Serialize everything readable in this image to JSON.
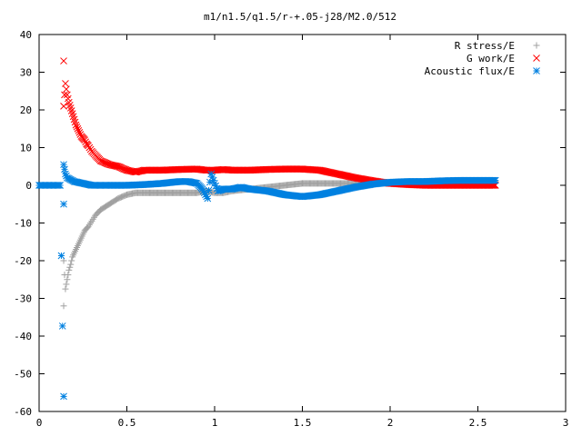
{
  "chart_data": {
    "type": "scatter",
    "title": "m1/n1.5/q1.5/r-+.05-j28/M2.0/512",
    "xlabel": "",
    "ylabel": "",
    "xlim": [
      0,
      3
    ],
    "ylim": [
      -60,
      40
    ],
    "xticks": [
      {
        "value": 0,
        "label": "0"
      },
      {
        "value": 0.5,
        "label": "0.5"
      },
      {
        "value": 1,
        "label": "1"
      },
      {
        "value": 1.5,
        "label": "1.5"
      },
      {
        "value": 2,
        "label": "2"
      },
      {
        "value": 2.5,
        "label": "2.5"
      },
      {
        "value": 3,
        "label": "3"
      }
    ],
    "yticks": [
      {
        "value": 40,
        "label": "40"
      },
      {
        "value": 30,
        "label": "30"
      },
      {
        "value": 20,
        "label": "20"
      },
      {
        "value": 10,
        "label": "10"
      },
      {
        "value": 0,
        "label": "0"
      },
      {
        "value": -10,
        "label": "-10"
      },
      {
        "value": -20,
        "label": "-20"
      },
      {
        "value": -30,
        "label": "-30"
      },
      {
        "value": -40,
        "label": "-40"
      },
      {
        "value": -50,
        "label": "-50"
      },
      {
        "value": -60,
        "label": "-60"
      }
    ],
    "grid": false,
    "legend_position": "top-right",
    "series": [
      {
        "name": "R stress/E",
        "marker": "plus",
        "color": "#a0a0a0",
        "x": [
          0.14,
          0.14,
          0.15,
          0.16,
          0.17,
          0.18,
          0.19,
          0.2,
          0.21,
          0.22,
          0.23,
          0.24,
          0.25,
          0.26,
          0.27,
          0.28,
          0.3,
          0.32,
          0.35,
          0.4,
          0.45,
          0.5,
          0.55,
          0.6,
          0.7,
          0.8,
          0.9,
          0.95,
          1.0,
          1.05,
          1.1,
          1.2,
          1.3,
          1.4,
          1.5,
          1.6,
          1.7,
          1.8,
          1.9,
          2.0,
          2.1,
          2.2,
          2.3,
          2.4,
          2.5,
          2.6
        ],
        "y": [
          -32,
          -20,
          -27.5,
          -25,
          -22.5,
          -21,
          -19,
          -18,
          -17,
          -16,
          -15,
          -14,
          -13,
          -12,
          -11.5,
          -11,
          -9.5,
          -8,
          -6.5,
          -5,
          -3.5,
          -2.5,
          -2,
          -2,
          -2,
          -2,
          -2,
          -1.5,
          -2,
          -2,
          -1.5,
          -1,
          -0.5,
          0,
          0.5,
          0.5,
          0.5,
          0.5,
          0.5,
          0.5,
          0.8,
          0.8,
          1,
          1,
          1,
          1
        ]
      },
      {
        "name": "G work/E",
        "marker": "cross",
        "color": "#ff0000",
        "x": [
          0.14,
          0.14,
          0.15,
          0.16,
          0.17,
          0.18,
          0.19,
          0.2,
          0.21,
          0.22,
          0.23,
          0.24,
          0.25,
          0.26,
          0.27,
          0.28,
          0.3,
          0.32,
          0.35,
          0.4,
          0.45,
          0.5,
          0.55,
          0.6,
          0.7,
          0.8,
          0.9,
          0.95,
          1.0,
          1.05,
          1.1,
          1.2,
          1.3,
          1.4,
          1.5,
          1.6,
          1.7,
          1.8,
          1.9,
          2.0,
          2.1,
          2.2,
          2.3,
          2.4,
          2.5,
          2.6
        ],
        "y": [
          33,
          21,
          27,
          24,
          22,
          20.5,
          19,
          17.5,
          16,
          15,
          14,
          13,
          12.5,
          12,
          11,
          10.5,
          9,
          8,
          6.5,
          5.5,
          5,
          4,
          3.5,
          4,
          4,
          4.2,
          4.3,
          4,
          4,
          4.2,
          4,
          4,
          4.2,
          4.3,
          4.3,
          4,
          3,
          2,
          1.2,
          0.5,
          0.2,
          0,
          0,
          0,
          0,
          0
        ]
      },
      {
        "name": "Acoustic flux/E",
        "marker": "star",
        "color": "#0080e0",
        "x": [
          0,
          0.02,
          0.04,
          0.06,
          0.08,
          0.1,
          0.12,
          0.14,
          0.14,
          0.14,
          0.15,
          0.16,
          0.18,
          0.2,
          0.22,
          0.25,
          0.3,
          0.35,
          0.4,
          0.5,
          0.6,
          0.7,
          0.8,
          0.85,
          0.9,
          0.93,
          0.96,
          0.98,
          1.0,
          1.02,
          1.05,
          1.1,
          1.15,
          1.2,
          1.3,
          1.4,
          1.5,
          1.6,
          1.7,
          1.8,
          1.9,
          2.0,
          2.1,
          2.2,
          2.3,
          2.4,
          2.5,
          2.6
        ],
        "y": [
          0,
          0,
          0,
          0,
          0,
          0,
          0,
          -56,
          -5,
          5.5,
          3,
          2,
          1.5,
          1,
          0.8,
          0.5,
          0,
          0,
          0,
          0,
          0.2,
          0.5,
          1,
          1,
          0.5,
          -1,
          -3.5,
          3,
          0.5,
          -1.5,
          -1,
          -1,
          -0.5,
          -1,
          -1.5,
          -2.5,
          -3,
          -2.5,
          -1.5,
          -0.5,
          0.3,
          0.8,
          1,
          1,
          1.2,
          1.3,
          1.3,
          1.3
        ]
      }
    ]
  }
}
